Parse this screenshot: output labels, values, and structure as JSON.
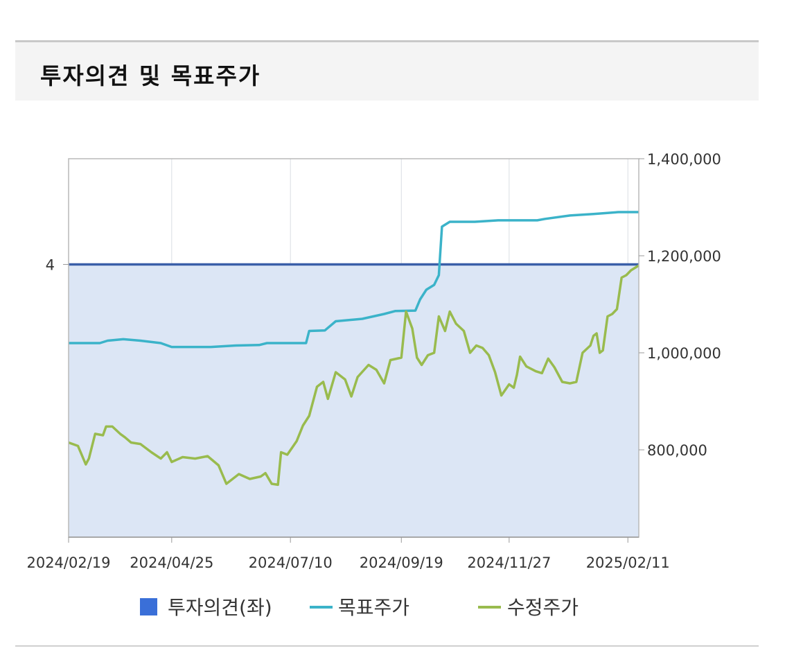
{
  "section": {
    "title": "투자의견 및 목표주가"
  },
  "chart_data": {
    "type": "line",
    "x_ticks": [
      "2024/02/19",
      "2024/04/25",
      "2024/07/10",
      "2024/09/19",
      "2024/11/27",
      "2025/02/11"
    ],
    "x_start": "2024/02/19",
    "x_end": "2025/02/18",
    "y_right": {
      "ticks": [
        800000,
        1000000,
        1200000,
        1400000
      ],
      "tick_labels": [
        "800,000",
        "1,000,000",
        "1,200,000",
        "1,400,000"
      ],
      "range": [
        620000,
        1400000
      ]
    },
    "y_left": {
      "ticks": [
        4
      ],
      "tick_labels": [
        "4"
      ],
      "range": [
        0,
        5.55
      ]
    },
    "grid": true,
    "legend_position": "bottom",
    "series": [
      {
        "name": "투자의견(좌)",
        "axis": "left",
        "style": "area",
        "color": "#3a6fd8",
        "points": [
          [
            "2024/02/19",
            4
          ],
          [
            "2025/02/18",
            4
          ]
        ]
      },
      {
        "name": "목표주가",
        "axis": "right",
        "style": "line",
        "color": "#3bb3c9",
        "points": [
          [
            "2024/02/19",
            1020000
          ],
          [
            "2024/03/10",
            1020000
          ],
          [
            "2024/03/15",
            1025000
          ],
          [
            "2024/03/25",
            1028000
          ],
          [
            "2024/04/05",
            1025000
          ],
          [
            "2024/04/18",
            1020000
          ],
          [
            "2024/04/25",
            1012000
          ],
          [
            "2024/05/20",
            1012000
          ],
          [
            "2024/06/05",
            1015000
          ],
          [
            "2024/06/20",
            1016000
          ],
          [
            "2024/06/25",
            1020000
          ],
          [
            "2024/07/20",
            1020000
          ],
          [
            "2024/07/22",
            1045000
          ],
          [
            "2024/08/01",
            1046000
          ],
          [
            "2024/08/08",
            1065000
          ],
          [
            "2024/08/25",
            1070000
          ],
          [
            "2024/09/08",
            1080000
          ],
          [
            "2024/09/15",
            1086000
          ],
          [
            "2024/09/28",
            1087000
          ],
          [
            "2024/10/01",
            1110000
          ],
          [
            "2024/10/05",
            1130000
          ],
          [
            "2024/10/10",
            1140000
          ],
          [
            "2024/10/13",
            1160000
          ],
          [
            "2024/10/15",
            1260000
          ],
          [
            "2024/10/20",
            1270000
          ],
          [
            "2024/11/05",
            1270000
          ],
          [
            "2024/11/20",
            1273000
          ],
          [
            "2024/12/15",
            1273000
          ],
          [
            "2024/12/20",
            1276000
          ],
          [
            "2025/01/05",
            1283000
          ],
          [
            "2025/01/20",
            1286000
          ],
          [
            "2025/02/05",
            1290000
          ],
          [
            "2025/02/18",
            1290000
          ]
        ]
      },
      {
        "name": "수정주가",
        "axis": "right",
        "style": "line",
        "color": "#99bb4e",
        "points": [
          [
            "2024/02/19",
            815000
          ],
          [
            "2024/02/25",
            808000
          ],
          [
            "2024/03/01",
            770000
          ],
          [
            "2024/03/03",
            782000
          ],
          [
            "2024/03/07",
            833000
          ],
          [
            "2024/03/12",
            830000
          ],
          [
            "2024/03/14",
            848000
          ],
          [
            "2024/03/18",
            848000
          ],
          [
            "2024/03/23",
            833000
          ],
          [
            "2024/03/26",
            826000
          ],
          [
            "2024/03/30",
            815000
          ],
          [
            "2024/04/05",
            812000
          ],
          [
            "2024/04/12",
            795000
          ],
          [
            "2024/04/18",
            782000
          ],
          [
            "2024/04/22",
            795000
          ],
          [
            "2024/04/25",
            775000
          ],
          [
            "2024/05/02",
            785000
          ],
          [
            "2024/05/10",
            782000
          ],
          [
            "2024/05/18",
            787000
          ],
          [
            "2024/05/25",
            768000
          ],
          [
            "2024/05/30",
            730000
          ],
          [
            "2024/06/07",
            750000
          ],
          [
            "2024/06/14",
            740000
          ],
          [
            "2024/06/21",
            745000
          ],
          [
            "2024/06/24",
            752000
          ],
          [
            "2024/06/28",
            730000
          ],
          [
            "2024/07/02",
            728000
          ],
          [
            "2024/07/04",
            795000
          ],
          [
            "2024/07/08",
            790000
          ],
          [
            "2024/07/14",
            818000
          ],
          [
            "2024/07/18",
            850000
          ],
          [
            "2024/07/22",
            870000
          ],
          [
            "2024/07/27",
            930000
          ],
          [
            "2024/07/31",
            940000
          ],
          [
            "2024/08/03",
            905000
          ],
          [
            "2024/08/08",
            960000
          ],
          [
            "2024/08/14",
            945000
          ],
          [
            "2024/08/18",
            910000
          ],
          [
            "2024/08/22",
            950000
          ],
          [
            "2024/08/29",
            975000
          ],
          [
            "2024/09/03",
            965000
          ],
          [
            "2024/09/08",
            937000
          ],
          [
            "2024/09/12",
            985000
          ],
          [
            "2024/09/19",
            990000
          ],
          [
            "2024/09/22",
            1085000
          ],
          [
            "2024/09/26",
            1050000
          ],
          [
            "2024/09/29",
            990000
          ],
          [
            "2024/10/02",
            975000
          ],
          [
            "2024/10/06",
            995000
          ],
          [
            "2024/10/10",
            1000000
          ],
          [
            "2024/10/13",
            1075000
          ],
          [
            "2024/10/17",
            1045000
          ],
          [
            "2024/10/20",
            1085000
          ],
          [
            "2024/10/24",
            1060000
          ],
          [
            "2024/10/29",
            1045000
          ],
          [
            "2024/11/02",
            1000000
          ],
          [
            "2024/11/06",
            1015000
          ],
          [
            "2024/11/10",
            1010000
          ],
          [
            "2024/11/14",
            995000
          ],
          [
            "2024/11/18",
            960000
          ],
          [
            "2024/11/22",
            912000
          ],
          [
            "2024/11/27",
            935000
          ],
          [
            "2024/11/30",
            928000
          ],
          [
            "2024/12/02",
            955000
          ],
          [
            "2024/12/04",
            992000
          ],
          [
            "2024/12/08",
            972000
          ],
          [
            "2024/12/14",
            962000
          ],
          [
            "2024/12/18",
            958000
          ],
          [
            "2024/12/22",
            988000
          ],
          [
            "2024/12/26",
            970000
          ],
          [
            "2024/12/31",
            940000
          ],
          [
            "2025/01/05",
            937000
          ],
          [
            "2025/01/09",
            940000
          ],
          [
            "2025/01/13",
            1000000
          ],
          [
            "2025/01/18",
            1015000
          ],
          [
            "2025/01/20",
            1035000
          ],
          [
            "2025/01/22",
            1040000
          ],
          [
            "2025/01/24",
            1000000
          ],
          [
            "2025/01/26",
            1005000
          ],
          [
            "2025/01/29",
            1075000
          ],
          [
            "2025/02/01",
            1080000
          ],
          [
            "2025/02/04",
            1090000
          ],
          [
            "2025/02/07",
            1155000
          ],
          [
            "2025/02/10",
            1160000
          ],
          [
            "2025/02/13",
            1170000
          ],
          [
            "2025/02/18",
            1180000
          ]
        ]
      }
    ],
    "legend": [
      {
        "label": "투자의견(좌)",
        "marker": "square",
        "color": "#3a6fd8"
      },
      {
        "label": "목표주가",
        "marker": "line",
        "color": "#3bb3c9"
      },
      {
        "label": "수정주가",
        "marker": "line",
        "color": "#99bb4e"
      }
    ]
  }
}
